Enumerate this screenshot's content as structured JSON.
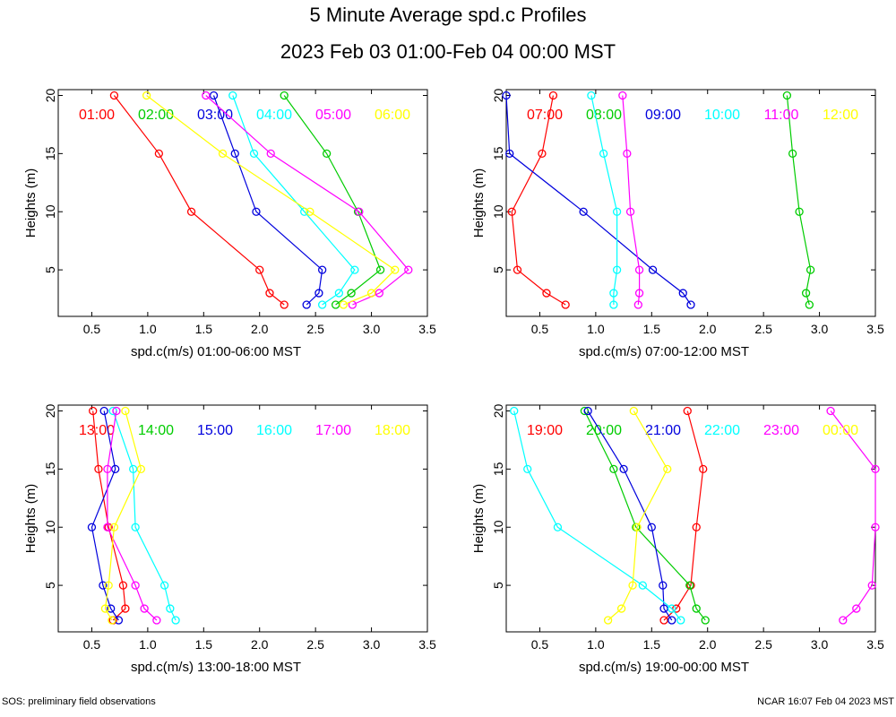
{
  "title": "5 Minute Average spd.c Profiles",
  "subtitle": "2023 Feb 03 01:00-Feb 04 00:00 MST",
  "footer_left": "SOS: preliminary field observations",
  "footer_right": "NCAR 16:07 Feb 04 2023 MST",
  "colors": [
    "#ff0000",
    "#00cc00",
    "#0000dd",
    "#00ffff",
    "#ff00ff",
    "#ffff00"
  ],
  "chart_data": [
    {
      "type": "line",
      "xlabel": "spd.c(m/s) 01:00-06:00 MST",
      "ylabel": "Heights (m)",
      "xlim": [
        0.2,
        3.5
      ],
      "ylim": [
        1,
        20.5
      ],
      "xticks": [
        "0.5",
        "1.0",
        "1.5",
        "2.0",
        "2.5",
        "3.0",
        "3.5"
      ],
      "yticks": [
        "5",
        "10",
        "15",
        "20"
      ],
      "heights": [
        20,
        15,
        10,
        5,
        3,
        2
      ],
      "series": [
        {
          "name": "01:00",
          "values": [
            0.7,
            1.1,
            1.39,
            2.0,
            2.09,
            2.22
          ]
        },
        {
          "name": "02:00",
          "values": [
            2.22,
            2.6,
            2.88,
            3.08,
            2.82,
            2.68
          ]
        },
        {
          "name": "03:00",
          "values": [
            1.59,
            1.78,
            1.97,
            2.56,
            2.53,
            2.42
          ]
        },
        {
          "name": "04:00",
          "values": [
            1.76,
            1.95,
            2.4,
            2.85,
            2.71,
            2.56
          ]
        },
        {
          "name": "05:00",
          "values": [
            1.52,
            2.1,
            2.89,
            3.33,
            3.07,
            2.83
          ]
        },
        {
          "name": "06:00",
          "values": [
            0.99,
            1.67,
            2.45,
            3.21,
            3.0,
            2.75
          ]
        }
      ]
    },
    {
      "type": "line",
      "xlabel": "spd.c(m/s) 07:00-12:00 MST",
      "ylabel": "Heights (m)",
      "xlim": [
        0.2,
        3.5
      ],
      "ylim": [
        1,
        20.5
      ],
      "xticks": [
        "0.5",
        "1.0",
        "1.5",
        "2.0",
        "2.5",
        "3.0",
        "3.5"
      ],
      "yticks": [
        "5",
        "10",
        "15",
        "20"
      ],
      "heights": [
        20,
        15,
        10,
        5,
        3,
        2
      ],
      "series": [
        {
          "name": "07:00",
          "values": [
            0.62,
            0.52,
            0.25,
            0.3,
            0.56,
            0.73
          ]
        },
        {
          "name": "08:00",
          "values": [
            2.71,
            2.76,
            2.82,
            2.92,
            2.88,
            2.91
          ]
        },
        {
          "name": "09:00",
          "values": [
            0.2,
            0.23,
            0.89,
            1.51,
            1.78,
            1.85
          ]
        },
        {
          "name": "10:00",
          "values": [
            0.96,
            1.07,
            1.19,
            1.19,
            1.16,
            1.16
          ]
        },
        {
          "name": "11:00",
          "values": [
            1.24,
            1.28,
            1.31,
            1.39,
            1.39,
            1.38
          ]
        },
        {
          "name": "12:00",
          "values": []
        }
      ]
    },
    {
      "type": "line",
      "xlabel": "spd.c(m/s) 13:00-18:00 MST",
      "ylabel": "Heights (m)",
      "xlim": [
        0.2,
        3.5
      ],
      "ylim": [
        1,
        20.5
      ],
      "xticks": [
        "0.5",
        "1.0",
        "1.5",
        "2.0",
        "2.5",
        "3.0",
        "3.5"
      ],
      "yticks": [
        "5",
        "10",
        "15",
        "20"
      ],
      "heights": [
        20,
        15,
        10,
        5,
        3,
        2
      ],
      "series": [
        {
          "name": "13:00",
          "values": [
            0.51,
            0.56,
            0.65,
            0.78,
            0.8,
            0.69
          ]
        },
        {
          "name": "14:00",
          "values": []
        },
        {
          "name": "15:00",
          "values": [
            0.61,
            0.71,
            0.5,
            0.6,
            0.67,
            0.74
          ]
        },
        {
          "name": "16:00",
          "values": [
            0.69,
            0.87,
            0.89,
            1.15,
            1.2,
            1.25
          ]
        },
        {
          "name": "17:00",
          "values": [
            0.72,
            0.64,
            0.64,
            0.89,
            0.97,
            1.08
          ]
        },
        {
          "name": "18:00",
          "values": [
            0.8,
            0.94,
            0.7,
            0.65,
            0.62,
            0.68
          ]
        }
      ]
    },
    {
      "type": "line",
      "xlabel": "spd.c(m/s) 19:00-00:00 MST",
      "ylabel": "Heights (m)",
      "xlim": [
        0.2,
        3.5
      ],
      "ylim": [
        1,
        20.5
      ],
      "xticks": [
        "0.5",
        "1.0",
        "1.5",
        "2.0",
        "2.5",
        "3.0",
        "3.5"
      ],
      "yticks": [
        "5",
        "10",
        "15",
        "20"
      ],
      "heights": [
        20,
        15,
        10,
        5,
        3,
        2
      ],
      "series": [
        {
          "name": "19:00",
          "values": [
            1.82,
            1.96,
            1.9,
            1.85,
            1.72,
            1.61
          ]
        },
        {
          "name": "20:00",
          "values": [
            0.9,
            1.16,
            1.36,
            1.84,
            1.9,
            1.98
          ]
        },
        {
          "name": "21:00",
          "values": [
            0.93,
            1.25,
            1.5,
            1.6,
            1.61,
            1.68
          ]
        },
        {
          "name": "22:00",
          "values": [
            0.27,
            0.39,
            0.66,
            1.42,
            1.68,
            1.76
          ]
        },
        {
          "name": "23:00",
          "values": [
            3.1,
            3.5,
            3.5,
            3.47,
            3.33,
            3.21
          ]
        },
        {
          "name": "00:00",
          "values": [
            1.34,
            1.64,
            1.37,
            1.33,
            1.23,
            1.11
          ]
        }
      ]
    }
  ]
}
